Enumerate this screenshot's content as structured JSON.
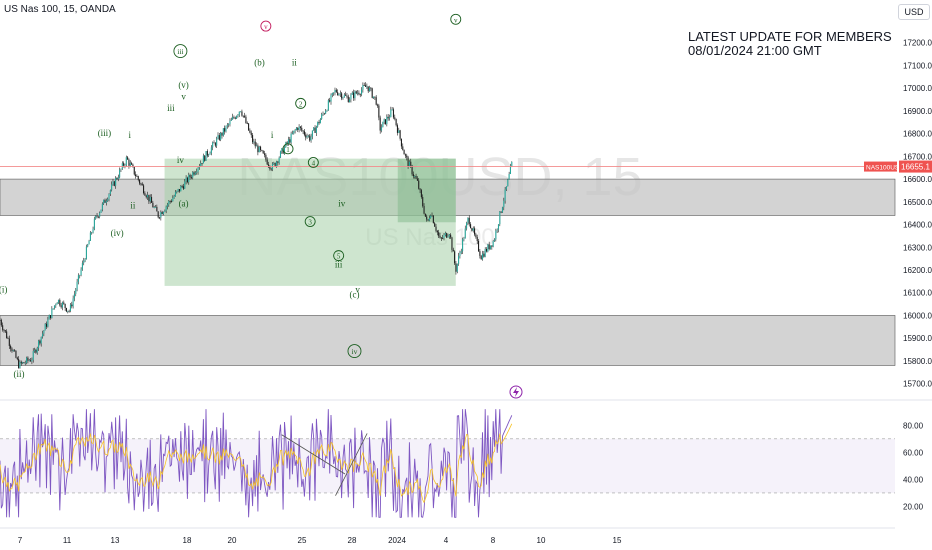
{
  "header": {
    "symbol": "US Nas 100, 15, OANDA",
    "currency": "USD"
  },
  "watermark": {
    "ticker": "NAS100USD, 15",
    "name": "US Nas 100"
  },
  "note": {
    "line1": "LATEST UPDATE FOR MEMBERS",
    "line2": "08/01/2024 21:00 GMT"
  },
  "colors": {
    "bull": "#26a69a",
    "bear": "#ef5350",
    "candle": "#1e1e1e",
    "wave": "#1b5e20",
    "rsi": "#7e57c2",
    "rsi_ma": "#f7c325",
    "zone": "#c4c4c4",
    "box": "#a5cfa7",
    "price_line": "#f28b8b",
    "price_tag": "#ef5350"
  },
  "chart_data": [
    {
      "type": "candlestick",
      "title": "US Nas 100, 15, OANDA",
      "ylim": [
        15650,
        17300
      ],
      "y_ticks": [
        "17200.0",
        "17100.0",
        "17000.0",
        "16900.0",
        "16800.0",
        "16700.0",
        "16600.0",
        "16500.0",
        "16400.0",
        "16300.0",
        "16200.0",
        "16100.0",
        "16000.0",
        "15900.0",
        "15800.0",
        "15700.0"
      ],
      "x_ticks": [
        "7",
        "11",
        "13",
        "18",
        "20",
        "25",
        "28",
        "2024",
        "4",
        "8",
        "10",
        "15"
      ],
      "last_price": {
        "label": "NAS100USD",
        "value": "16655.1"
      },
      "path": [
        [
          0,
          15980
        ],
        [
          3,
          15780
        ],
        [
          5,
          15810
        ],
        [
          9,
          16070
        ],
        [
          11,
          16020
        ],
        [
          15,
          16420
        ],
        [
          20,
          16690
        ],
        [
          25,
          16440
        ],
        [
          30,
          16610
        ],
        [
          34,
          16760
        ],
        [
          38,
          16910
        ],
        [
          40,
          16760
        ],
        [
          43,
          16650
        ],
        [
          47,
          16830
        ],
        [
          49,
          16780
        ],
        [
          53,
          16990
        ],
        [
          55,
          16955
        ],
        [
          58,
          17010
        ],
        [
          59.5,
          16940
        ],
        [
          60,
          16820
        ],
        [
          62,
          16900
        ],
        [
          64,
          16700
        ],
        [
          66,
          16580
        ],
        [
          67.5,
          16400
        ],
        [
          68,
          16460
        ],
        [
          69.5,
          16330
        ],
        [
          71,
          16370
        ],
        [
          72,
          16200
        ],
        [
          74,
          16430
        ],
        [
          76,
          16260
        ],
        [
          78,
          16330
        ],
        [
          80,
          16560
        ],
        [
          80.9,
          16670
        ]
      ],
      "zones": [
        [
          16440,
          16600
        ],
        [
          15780,
          16000
        ]
      ],
      "box": {
        "from": 26,
        "to": 72,
        "high": 16690,
        "low": 16560,
        "ext_low": 16130
      },
      "wave_labels": [
        {
          "label": "(i)",
          "i": 0.5,
          "p": 16100
        },
        {
          "label": "(ii)",
          "i": 3,
          "p": 15730
        },
        {
          "label": "(iii)",
          "i": 16.5,
          "p": 16790
        },
        {
          "label": "(iv)",
          "i": 18.5,
          "p": 16350
        },
        {
          "label": "i",
          "i": 20.5,
          "p": 16780
        },
        {
          "label": "ii",
          "i": 21,
          "p": 16470
        },
        {
          "label": "iii",
          "i": 27,
          "p": 16900
        },
        {
          "label": "iii",
          "i": 28.5,
          "p": 17150,
          "circle": true
        },
        {
          "label": "(v)",
          "i": 29,
          "p": 17000
        },
        {
          "label": "v",
          "i": 29,
          "p": 16950
        },
        {
          "label": "iv",
          "i": 28.5,
          "p": 16670
        },
        {
          "label": "(a)",
          "i": 29,
          "p": 16480
        },
        {
          "label": "v",
          "i": 42,
          "p": 17260,
          "circle": true,
          "red": true
        },
        {
          "label": "(b)",
          "i": 41,
          "p": 17100
        },
        {
          "label": "ii",
          "i": 46.5,
          "p": 17100
        },
        {
          "label": "i",
          "i": 43,
          "p": 16780
        },
        {
          "label": "2",
          "i": 47.5,
          "p": 16920,
          "circle": true
        },
        {
          "label": "1",
          "i": 45.5,
          "p": 16720,
          "circle": true
        },
        {
          "label": "4",
          "i": 49.5,
          "p": 16660,
          "circle": true
        },
        {
          "label": "3",
          "i": 49,
          "p": 16400,
          "circle": true
        },
        {
          "label": "iv",
          "i": 54,
          "p": 16480
        },
        {
          "label": "5",
          "i": 53.5,
          "p": 16250,
          "circle": true
        },
        {
          "label": "iii",
          "i": 53.5,
          "p": 16210
        },
        {
          "label": "(c)",
          "i": 56,
          "p": 16080
        },
        {
          "label": "v",
          "i": 56.5,
          "p": 16100
        },
        {
          "label": "iv",
          "i": 56,
          "p": 15830,
          "circle": true
        },
        {
          "label": "v",
          "i": 72,
          "p": 17290,
          "circle": true
        }
      ]
    },
    {
      "type": "line",
      "title": "RSI",
      "ylim": [
        10,
        95
      ],
      "y_ticks": [
        "80.00",
        "60.00",
        "40.00",
        "20.00"
      ],
      "band": [
        30,
        70
      ],
      "series": [
        {
          "values_note": "oscillator around 50"
        }
      ],
      "trendline": {
        "from": [
          44.5,
          73
        ],
        "to": [
          54.5,
          44
        ]
      }
    }
  ]
}
